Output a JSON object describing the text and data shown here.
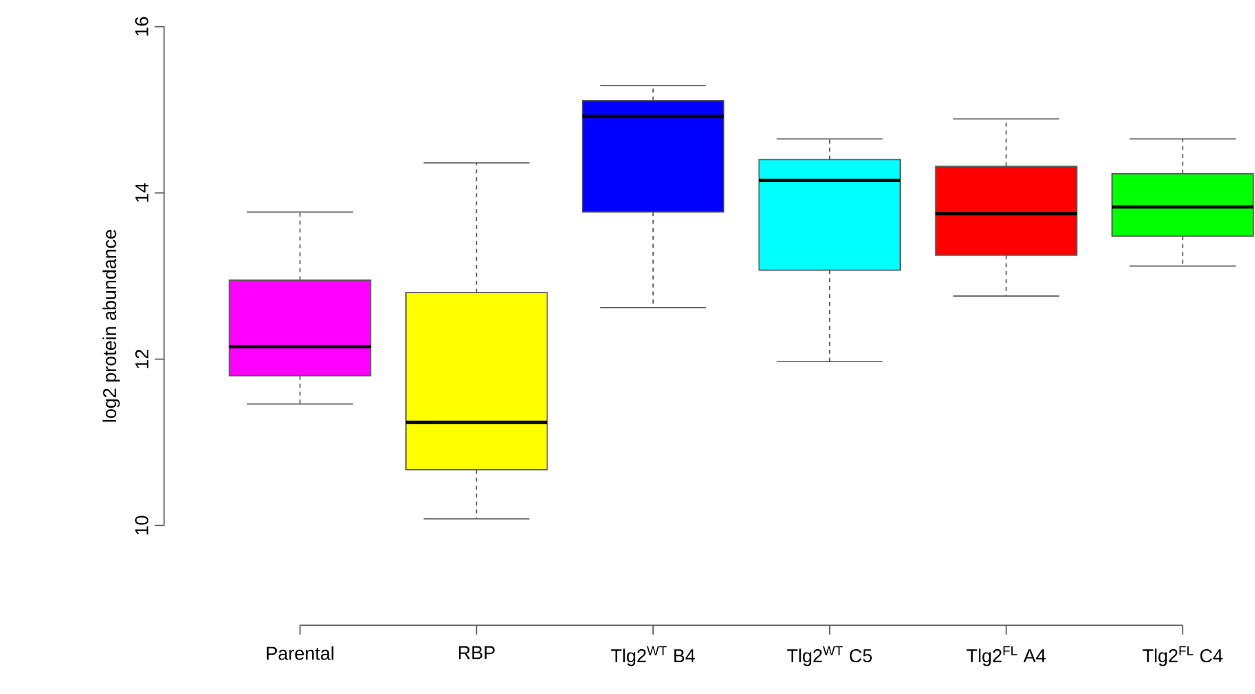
{
  "chart_data": {
    "type": "box",
    "ylabel": "log2 protein abundance",
    "categories": [
      "Parental",
      "RBP",
      "Tlg2$^{WT}$ B4",
      "Tlg2$^{WT}$ C5",
      "Tlg2$^{FL}$ A4",
      "Tlg2$^{FL}$ C4"
    ],
    "colors": [
      "#ff00ff",
      "#ffff00",
      "#0000ff",
      "#00ffff",
      "#ff0000",
      "#00ff00"
    ],
    "boxes": [
      {
        "low": 11.46,
        "q1": 11.8,
        "median": 12.15,
        "q3": 12.95,
        "high": 13.77
      },
      {
        "low": 10.08,
        "q1": 10.67,
        "median": 11.24,
        "q3": 12.8,
        "high": 14.36
      },
      {
        "low": 12.62,
        "q1": 13.77,
        "median": 14.92,
        "q3": 15.11,
        "high": 15.29
      },
      {
        "low": 11.97,
        "q1": 13.07,
        "median": 14.15,
        "q3": 14.4,
        "high": 14.65
      },
      {
        "low": 12.76,
        "q1": 13.25,
        "median": 13.75,
        "q3": 14.32,
        "high": 14.89
      },
      {
        "low": 13.12,
        "q1": 13.48,
        "median": 13.83,
        "q3": 14.23,
        "high": 14.65
      }
    ],
    "ylim": [
      8.8,
      16
    ],
    "yticks": [
      10,
      12,
      14,
      16
    ]
  }
}
